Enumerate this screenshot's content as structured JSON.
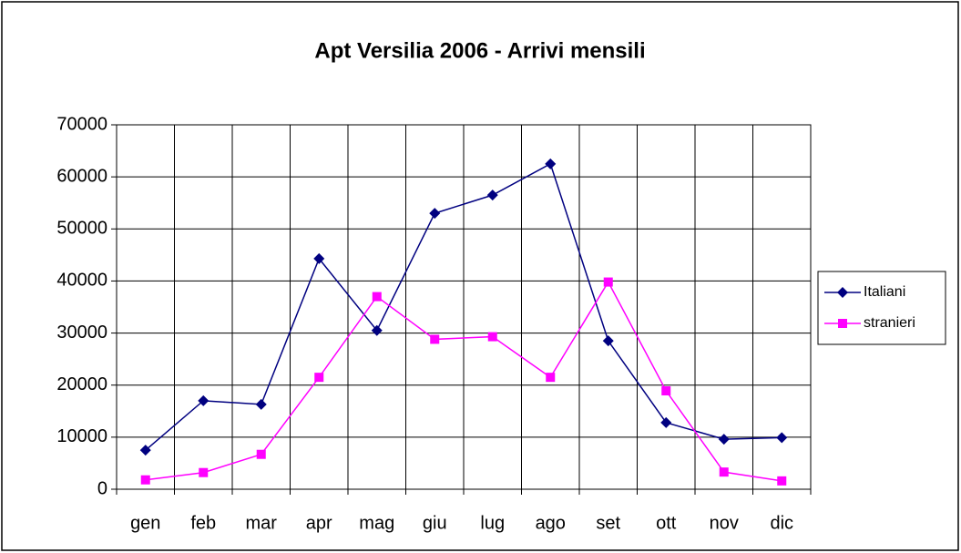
{
  "chart_data": {
    "type": "line",
    "title": "Apt Versilia 2006 - Arrivi mensili",
    "categories": [
      "gen",
      "feb",
      "mar",
      "apr",
      "mag",
      "giu",
      "lug",
      "ago",
      "set",
      "ott",
      "nov",
      "dic"
    ],
    "series": [
      {
        "name": "Italiani",
        "color": "#000080",
        "marker": "diamond",
        "values": [
          7500,
          17000,
          16300,
          44300,
          30500,
          53000,
          56500,
          62500,
          28500,
          12800,
          9600,
          9900
        ]
      },
      {
        "name": "stranieri",
        "color": "#ff00ff",
        "marker": "square",
        "values": [
          1800,
          3200,
          6700,
          21500,
          37000,
          28800,
          29300,
          21500,
          39800,
          18900,
          3300,
          1600
        ]
      }
    ],
    "ylim": [
      0,
      70000
    ],
    "yticks": [
      0,
      10000,
      20000,
      30000,
      40000,
      50000,
      60000,
      70000
    ],
    "grid": true,
    "legend": "right"
  }
}
